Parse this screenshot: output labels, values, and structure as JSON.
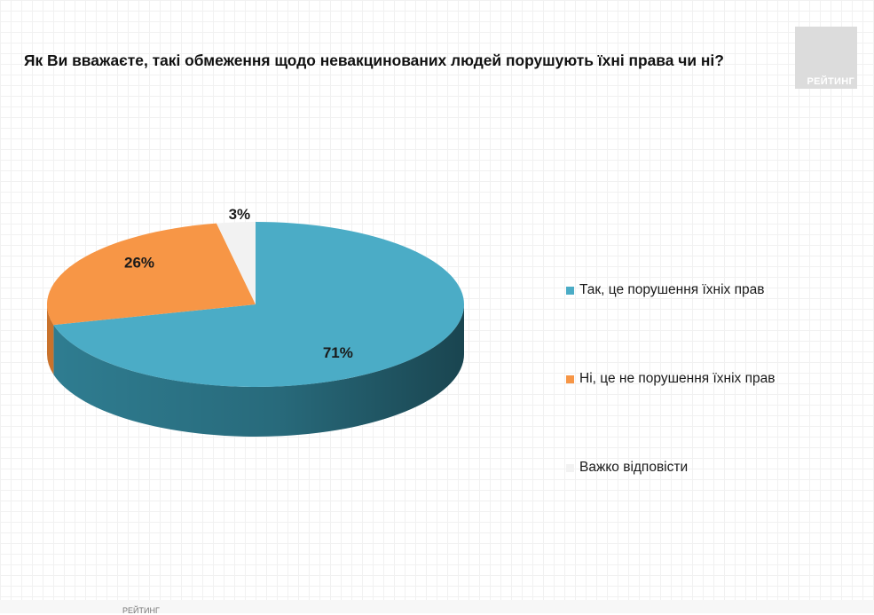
{
  "title": "Як Ви вважаєте, такі обмеження щодо невакцинованих людей порушують їхні права чи ні?",
  "logo": {
    "text": "РЕЙТИНГ",
    "color": "#dcdcdc"
  },
  "footer": "РЕЙТИНГ",
  "chart_data": {
    "type": "pie",
    "title": "Як Ви вважаєте, такі обмеження щодо невакцинованих людей порушують їхні права чи ні?",
    "style": "3d",
    "legend_position": "right",
    "categories": [
      "Так, це порушення їхніх прав",
      "Ні, це не порушення їхніх прав",
      "Важко відповісти"
    ],
    "values": [
      71,
      26,
      3
    ],
    "labels": [
      "71%",
      "26%",
      "3%"
    ],
    "colors": [
      "#4bacc6",
      "#f79646",
      "#f2f2f2"
    ],
    "side_colors": [
      "#2f7d91",
      "#c9722c",
      "#cfcfcf"
    ]
  }
}
